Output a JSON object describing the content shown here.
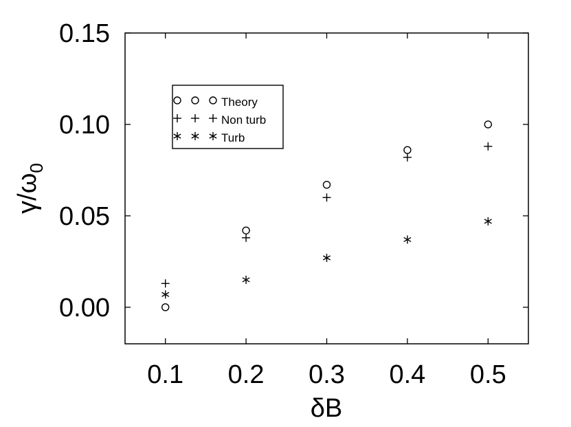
{
  "chart_data": {
    "type": "scatter",
    "xlabel": "δB",
    "ylabel_main": "γ/ω",
    "ylabel_sub": "0",
    "x": [
      0.1,
      0.2,
      0.3,
      0.4,
      0.5
    ],
    "xlim": [
      0.05,
      0.55
    ],
    "ylim": [
      -0.02,
      0.15
    ],
    "xticks": [
      0.1,
      0.2,
      0.3,
      0.4,
      0.5
    ],
    "xtick_labels": [
      "0.1",
      "0.2",
      "0.3",
      "0.4",
      "0.5"
    ],
    "yticks": [
      0.0,
      0.05,
      0.1,
      0.15
    ],
    "ytick_labels": [
      "0.00",
      "0.05",
      "0.10",
      "0.15"
    ],
    "grid": false,
    "legend_position": "top-left",
    "series": [
      {
        "name": "Theory",
        "marker": "circle",
        "values": [
          0.0,
          0.042,
          0.067,
          0.086,
          0.1
        ]
      },
      {
        "name": "Non turb",
        "marker": "plus",
        "values": [
          0.013,
          0.038,
          0.06,
          0.082,
          0.088
        ]
      },
      {
        "name": "Turb",
        "marker": "star",
        "values": [
          0.007,
          0.015,
          0.027,
          0.037,
          0.047
        ]
      }
    ]
  }
}
